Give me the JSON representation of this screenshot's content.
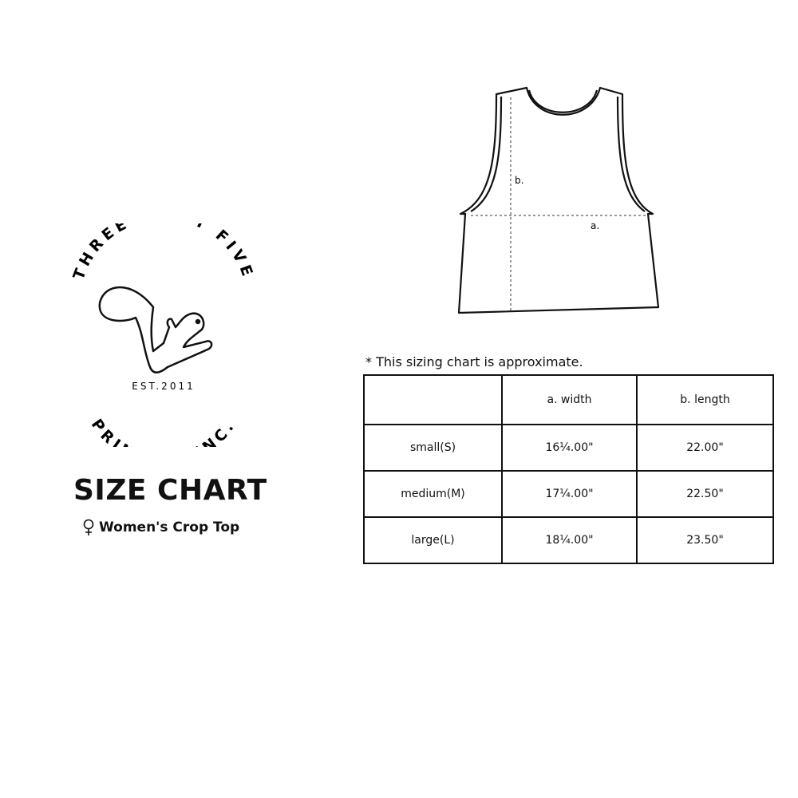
{
  "logo": {
    "top_text": "THREE SIXTY FIVE",
    "est": "EST.2011",
    "bottom_text": "PRINTING INC."
  },
  "title": "SIZE CHART",
  "subtitle": {
    "icon": "female-symbol-icon",
    "text": "Women's Crop Top"
  },
  "diagram": {
    "label_a": "a.",
    "label_b": "b."
  },
  "note": "* This sizing chart is approximate.",
  "table": {
    "headers": [
      "",
      "a. width",
      "b. length"
    ],
    "rows": [
      [
        "small(S)",
        "16¼.00\"",
        "22.00\""
      ],
      [
        "medium(M)",
        "17¼.00\"",
        "22.50\""
      ],
      [
        "large(L)",
        "18¼.00\"",
        "23.50\""
      ]
    ]
  }
}
